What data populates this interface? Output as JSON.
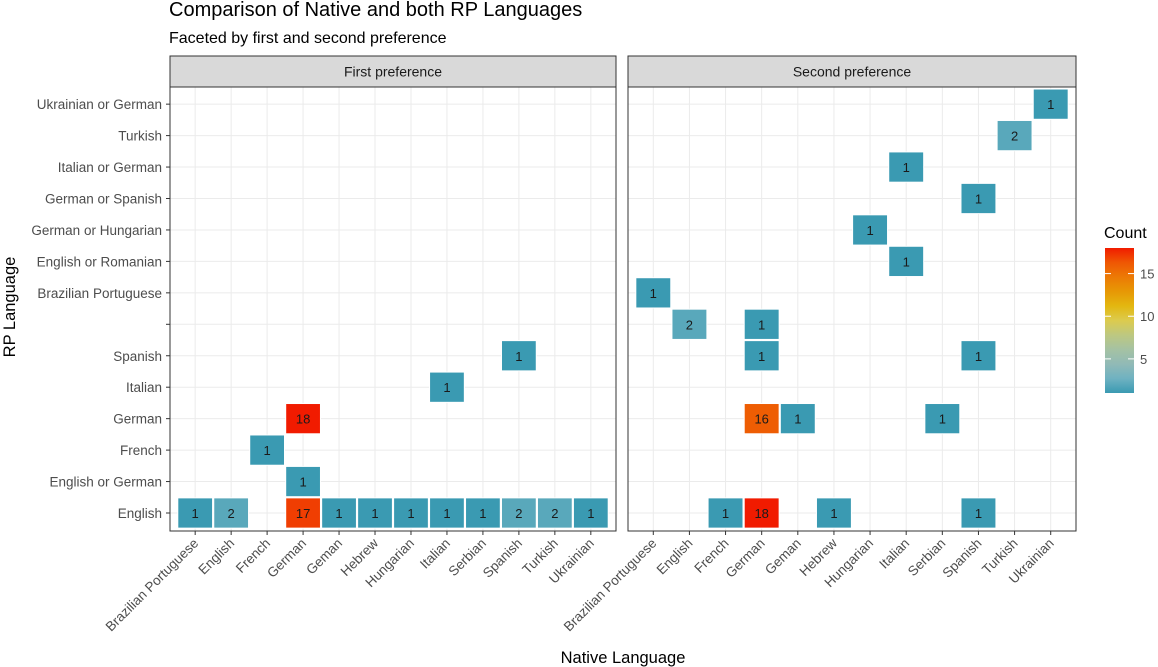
{
  "chart_data": {
    "type": "heatmap",
    "title": "Comparison of Native and both RP Languages",
    "subtitle": "Faceted by first and second preference",
    "xlabel": "Native Language",
    "ylabel": "RP Language",
    "legend": {
      "title": "Count",
      "ticks": [
        5,
        10,
        15
      ],
      "range": [
        1,
        18
      ],
      "colors": [
        "#3A9AB2",
        "#6FB2C1",
        "#91BAB6",
        "#A5C2A3",
        "#BDC881",
        "#DCCB4E",
        "#E3B710",
        "#E79805",
        "#EC7A05",
        "#EF5703",
        "#F11B00"
      ],
      "position": "right"
    },
    "x_categories": [
      "Brazilian Portuguese",
      "English",
      "French",
      "German",
      "Geman",
      "Hebrew",
      "Hungarian",
      "Italian",
      "Serbian",
      "Spanish",
      "Turkish",
      "Ukrainian"
    ],
    "y_categories": [
      "English",
      "English or German",
      "French",
      "German",
      "Italian",
      "Spanish",
      "",
      "Brazilian Portuguese",
      "English or Romanian",
      "German or Hungarian",
      "German or Spanish",
      "Italian or German",
      "Turkish",
      "Ukrainian or German"
    ],
    "facets": [
      {
        "label": "First preference",
        "cells": [
          {
            "x": "Brazilian Portuguese",
            "y": "English",
            "count": 1
          },
          {
            "x": "English",
            "y": "English",
            "count": 2
          },
          {
            "x": "German",
            "y": "English",
            "count": 17
          },
          {
            "x": "Geman",
            "y": "English",
            "count": 1
          },
          {
            "x": "Hebrew",
            "y": "English",
            "count": 1
          },
          {
            "x": "Hungarian",
            "y": "English",
            "count": 1
          },
          {
            "x": "Italian",
            "y": "English",
            "count": 1
          },
          {
            "x": "Serbian",
            "y": "English",
            "count": 1
          },
          {
            "x": "Spanish",
            "y": "English",
            "count": 2
          },
          {
            "x": "Turkish",
            "y": "English",
            "count": 2
          },
          {
            "x": "Ukrainian",
            "y": "English",
            "count": 1
          },
          {
            "x": "German",
            "y": "English or German",
            "count": 1
          },
          {
            "x": "French",
            "y": "French",
            "count": 1
          },
          {
            "x": "German",
            "y": "German",
            "count": 18
          },
          {
            "x": "Italian",
            "y": "Italian",
            "count": 1
          },
          {
            "x": "Spanish",
            "y": "Spanish",
            "count": 1
          }
        ]
      },
      {
        "label": "Second preference",
        "cells": [
          {
            "x": "French",
            "y": "English",
            "count": 1
          },
          {
            "x": "German",
            "y": "English",
            "count": 18
          },
          {
            "x": "Hebrew",
            "y": "English",
            "count": 1
          },
          {
            "x": "Spanish",
            "y": "English",
            "count": 1
          },
          {
            "x": "German",
            "y": "German",
            "count": 16
          },
          {
            "x": "Geman",
            "y": "German",
            "count": 1
          },
          {
            "x": "Serbian",
            "y": "German",
            "count": 1
          },
          {
            "x": "German",
            "y": "Spanish",
            "count": 1
          },
          {
            "x": "Spanish",
            "y": "Spanish",
            "count": 1
          },
          {
            "x": "English",
            "y": "",
            "count": 2
          },
          {
            "x": "German",
            "y": "",
            "count": 1
          },
          {
            "x": "Brazilian Portuguese",
            "y": "Brazilian Portuguese",
            "count": 1
          },
          {
            "x": "Italian",
            "y": "English or Romanian",
            "count": 1
          },
          {
            "x": "Hungarian",
            "y": "German or Hungarian",
            "count": 1
          },
          {
            "x": "Spanish",
            "y": "German or Spanish",
            "count": 1
          },
          {
            "x": "Italian",
            "y": "Italian or German",
            "count": 1
          },
          {
            "x": "Turkish",
            "y": "Turkish",
            "count": 2
          },
          {
            "x": "Ukrainian",
            "y": "Ukrainian or German",
            "count": 1
          }
        ]
      }
    ]
  }
}
